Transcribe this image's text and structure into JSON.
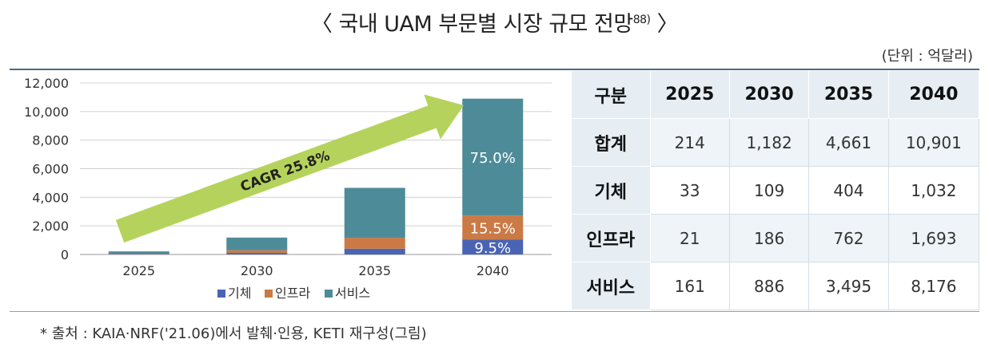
{
  "title": "〈 국내 UAM 부문별 시장 규모 전망",
  "title_footnote": "88)",
  "title_close": "〉",
  "unit": "(단위 : 억달러)",
  "source": "* 출처 : KAIA·NRF('21.06)에서 발췌·인용, KETI 재구성(그림)",
  "chart_data": {
    "type": "bar",
    "stacked": true,
    "categories": [
      "2025",
      "2030",
      "2035",
      "2040"
    ],
    "series": [
      {
        "name": "기체",
        "values": [
          33,
          109,
          404,
          1032
        ],
        "color": "#4a64b5"
      },
      {
        "name": "인프라",
        "values": [
          21,
          186,
          762,
          1693
        ],
        "color": "#cb7a45"
      },
      {
        "name": "서비스",
        "values": [
          161,
          886,
          3495,
          8176
        ],
        "color": "#4e8b99"
      }
    ],
    "ylim": [
      0,
      12000
    ],
    "yticks": [
      "12,000",
      "10,000",
      "8,000",
      "6,000",
      "4,000",
      "2,000",
      "0"
    ],
    "ytick_values": [
      12000,
      10000,
      8000,
      6000,
      4000,
      2000,
      0
    ],
    "grid": true,
    "legend": "bottom",
    "annotation": {
      "text": "CAGR 25.8%",
      "arrow_color": "#b5d35c"
    },
    "data_labels_2040": [
      "75.0%",
      "15.5%",
      "9.5%"
    ]
  },
  "table": {
    "headers": [
      "구분",
      "2025",
      "2030",
      "2035",
      "2040"
    ],
    "rows": [
      {
        "label": "합계",
        "values": [
          "214",
          "1,182",
          "4,661",
          "10,901"
        ]
      },
      {
        "label": "기체",
        "values": [
          "33",
          "109",
          "404",
          "1,032"
        ]
      },
      {
        "label": "인프라",
        "values": [
          "21",
          "186",
          "762",
          "1,693"
        ]
      },
      {
        "label": "서비스",
        "values": [
          "161",
          "886",
          "3,495",
          "8,176"
        ]
      }
    ]
  }
}
